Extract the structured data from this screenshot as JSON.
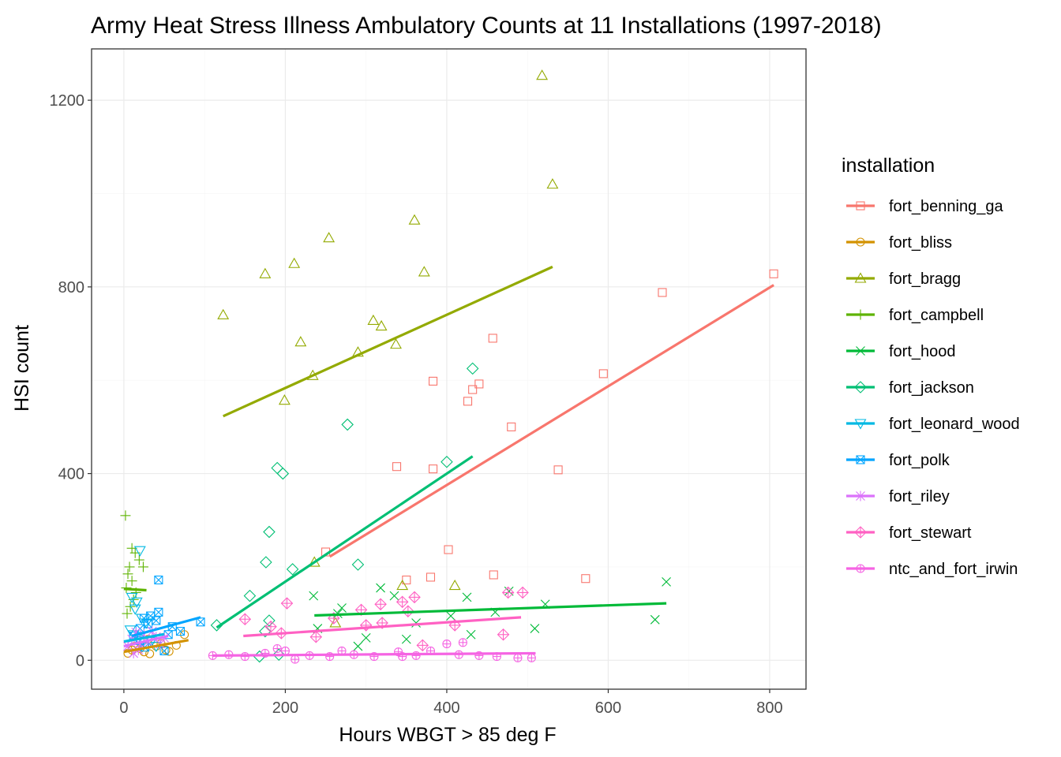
{
  "chart_data": {
    "type": "scatter",
    "title": "Army Heat Stress Illness Ambulatory Counts at 11 Installations (1997-2018)",
    "xlabel": "Hours WBGT > 85 deg F",
    "ylabel": "HSI count",
    "xlim": [
      -40,
      845
    ],
    "ylim": [
      -62,
      1310
    ],
    "x_ticks": [
      0,
      200,
      400,
      600,
      800
    ],
    "y_ticks": [
      0,
      400,
      800,
      1200
    ],
    "grid": true,
    "legend_title": "installation",
    "legend_position": "right",
    "series": [
      {
        "name": "fort_benning_ga",
        "color": "#F8766D",
        "shape": "square",
        "points": [
          [
            805,
            828
          ],
          [
            667,
            788
          ],
          [
            594,
            614
          ],
          [
            457,
            690
          ],
          [
            440,
            592
          ],
          [
            432,
            580
          ],
          [
            426,
            555
          ],
          [
            383,
            598
          ],
          [
            480,
            500
          ],
          [
            383,
            410
          ],
          [
            338,
            415
          ],
          [
            538,
            408
          ],
          [
            402,
            237
          ],
          [
            250,
            232
          ],
          [
            458,
            183
          ],
          [
            572,
            175
          ],
          [
            380,
            178
          ],
          [
            350,
            172
          ]
        ],
        "fit": [
          [
            255,
            222
          ],
          [
            805,
            804
          ]
        ]
      },
      {
        "name": "fort_bliss",
        "color": "#D39200",
        "shape": "circle",
        "points": [
          [
            5,
            15
          ],
          [
            10,
            22
          ],
          [
            14,
            30
          ],
          [
            20,
            25
          ],
          [
            25,
            18
          ],
          [
            32,
            14
          ],
          [
            40,
            30
          ],
          [
            46,
            36
          ],
          [
            52,
            22
          ],
          [
            56,
            19
          ],
          [
            65,
            32
          ],
          [
            75,
            55
          ],
          [
            30,
            45
          ]
        ],
        "fit": [
          [
            0,
            18
          ],
          [
            80,
            43
          ]
        ]
      },
      {
        "name": "fort_bragg",
        "color": "#93AA00",
        "shape": "triangle-up",
        "points": [
          [
            518,
            1253
          ],
          [
            531,
            1020
          ],
          [
            360,
            943
          ],
          [
            254,
            905
          ],
          [
            211,
            850
          ],
          [
            175,
            828
          ],
          [
            372,
            832
          ],
          [
            123,
            740
          ],
          [
            309,
            728
          ],
          [
            319,
            716
          ],
          [
            219,
            682
          ],
          [
            337,
            677
          ],
          [
            290,
            660
          ],
          [
            234,
            610
          ],
          [
            199,
            557
          ],
          [
            236,
            210
          ],
          [
            345,
            160
          ],
          [
            410,
            160
          ],
          [
            262,
            80
          ]
        ],
        "fit": [
          [
            123,
            523
          ],
          [
            531,
            843
          ]
        ]
      },
      {
        "name": "fort_campbell",
        "color": "#5EB300",
        "shape": "plus",
        "points": [
          [
            2,
            310
          ],
          [
            10,
            240
          ],
          [
            14,
            230
          ],
          [
            19,
            215
          ],
          [
            24,
            200
          ],
          [
            7,
            200
          ],
          [
            5,
            185
          ],
          [
            10,
            170
          ],
          [
            3,
            155
          ],
          [
            8,
            115
          ],
          [
            12,
            130
          ],
          [
            4,
            100
          ],
          [
            15,
            145
          ]
        ],
        "fit": [
          [
            0,
            153
          ],
          [
            28,
            150
          ]
        ]
      },
      {
        "name": "fort_hood",
        "color": "#00BA38",
        "shape": "x",
        "points": [
          [
            672,
            168
          ],
          [
            658,
            87
          ],
          [
            509,
            68
          ],
          [
            235,
            138
          ],
          [
            270,
            112
          ],
          [
            265,
            100
          ],
          [
            318,
            155
          ],
          [
            335,
            138
          ],
          [
            425,
            135
          ],
          [
            477,
            148
          ],
          [
            522,
            120
          ],
          [
            460,
            103
          ],
          [
            405,
            95
          ],
          [
            362,
            80
          ],
          [
            350,
            45
          ],
          [
            300,
            48
          ],
          [
            290,
            30
          ],
          [
            240,
            68
          ],
          [
            430,
            55
          ]
        ],
        "fit": [
          [
            236,
            96
          ],
          [
            672,
            122
          ]
        ]
      },
      {
        "name": "fort_jackson",
        "color": "#00BF74",
        "shape": "diamond",
        "points": [
          [
            432,
            625
          ],
          [
            277,
            505
          ],
          [
            190,
            412
          ],
          [
            197,
            400
          ],
          [
            400,
            425
          ],
          [
            180,
            275
          ],
          [
            176,
            210
          ],
          [
            209,
            195
          ],
          [
            290,
            205
          ],
          [
            156,
            138
          ],
          [
            180,
            85
          ],
          [
            175,
            62
          ],
          [
            115,
            75
          ],
          [
            192,
            12
          ],
          [
            168,
            8
          ]
        ],
        "fit": [
          [
            115,
            70
          ],
          [
            432,
            437
          ]
        ]
      },
      {
        "name": "fort_leonard_wood",
        "color": "#00B9E3",
        "shape": "triangle-down",
        "points": [
          [
            20,
            235
          ],
          [
            10,
            135
          ],
          [
            16,
            125
          ],
          [
            14,
            110
          ],
          [
            22,
            90
          ],
          [
            28,
            80
          ],
          [
            8,
            65
          ],
          [
            12,
            55
          ],
          [
            18,
            45
          ],
          [
            34,
            40
          ],
          [
            40,
            30
          ]
        ],
        "fit": [
          [
            0,
            40
          ],
          [
            50,
            56
          ]
        ]
      },
      {
        "name": "fort_polk",
        "color": "#00A5FF",
        "shape": "square-x",
        "points": [
          [
            95,
            82
          ],
          [
            43,
            172
          ],
          [
            43,
            103
          ],
          [
            33,
            95
          ],
          [
            25,
            90
          ],
          [
            40,
            85
          ],
          [
            60,
            72
          ],
          [
            55,
            55
          ],
          [
            70,
            62
          ],
          [
            30,
            78
          ],
          [
            20,
            68
          ],
          [
            12,
            52
          ],
          [
            20,
            42
          ],
          [
            26,
            28
          ],
          [
            50,
            20
          ]
        ],
        "fit": [
          [
            10,
            52
          ],
          [
            95,
            92
          ]
        ]
      },
      {
        "name": "fort_riley",
        "color": "#DB72FB",
        "shape": "asterisk",
        "points": [
          [
            5,
            30
          ],
          [
            10,
            45
          ],
          [
            15,
            60
          ],
          [
            20,
            35
          ],
          [
            25,
            55
          ],
          [
            30,
            40
          ],
          [
            35,
            62
          ],
          [
            40,
            50
          ],
          [
            45,
            35
          ],
          [
            12,
            15
          ],
          [
            18,
            22
          ],
          [
            50,
            48
          ]
        ],
        "fit": [
          [
            0,
            30
          ],
          [
            55,
            52
          ]
        ]
      },
      {
        "name": "fort_stewart",
        "color": "#FF61C3",
        "shape": "diamond-plus",
        "points": [
          [
            476,
            145
          ],
          [
            494,
            145
          ],
          [
            318,
            120
          ],
          [
            345,
            125
          ],
          [
            360,
            135
          ],
          [
            294,
            108
          ],
          [
            202,
            122
          ],
          [
            352,
            105
          ],
          [
            150,
            88
          ],
          [
            260,
            90
          ],
          [
            320,
            80
          ],
          [
            410,
            75
          ],
          [
            470,
            55
          ],
          [
            238,
            50
          ],
          [
            370,
            32
          ],
          [
            182,
            72
          ],
          [
            195,
            58
          ],
          [
            300,
            75
          ]
        ],
        "fit": [
          [
            148,
            52
          ],
          [
            492,
            92
          ]
        ]
      },
      {
        "name": "ntc_and_fort_irwin",
        "color": "#F564E3",
        "shape": "circle-plus",
        "points": [
          [
            110,
            10
          ],
          [
            130,
            12
          ],
          [
            150,
            8
          ],
          [
            175,
            15
          ],
          [
            200,
            20
          ],
          [
            212,
            2
          ],
          [
            230,
            10
          ],
          [
            255,
            8
          ],
          [
            285,
            12
          ],
          [
            310,
            8
          ],
          [
            340,
            18
          ],
          [
            362,
            10
          ],
          [
            380,
            20
          ],
          [
            415,
            12
          ],
          [
            440,
            10
          ],
          [
            462,
            8
          ],
          [
            488,
            5
          ],
          [
            505,
            5
          ],
          [
            400,
            35
          ],
          [
            420,
            38
          ],
          [
            345,
            8
          ],
          [
            270,
            20
          ],
          [
            190,
            25
          ]
        ],
        "fit": [
          [
            110,
            10
          ],
          [
            510,
            15
          ]
        ]
      }
    ]
  }
}
